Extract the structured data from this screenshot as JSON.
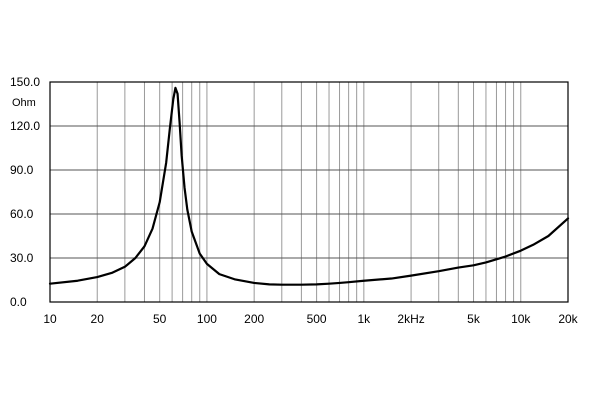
{
  "chart_data": {
    "type": "line",
    "xscale": "log",
    "xlim": [
      10,
      20000
    ],
    "ylim": [
      0,
      150
    ],
    "ylabel": "Ohm",
    "xlabel": "",
    "grid": true,
    "y_ticks": [
      {
        "value": 0,
        "label": "0.0"
      },
      {
        "value": 30,
        "label": "30.0"
      },
      {
        "value": 60,
        "label": "60.0"
      },
      {
        "value": 90,
        "label": "90.0"
      },
      {
        "value": 120,
        "label": "120.0"
      },
      {
        "value": 150,
        "label": "150.0"
      }
    ],
    "x_ticks": [
      {
        "value": 10,
        "label": "10"
      },
      {
        "value": 20,
        "label": "20"
      },
      {
        "value": 50,
        "label": "50"
      },
      {
        "value": 100,
        "label": "100"
      },
      {
        "value": 200,
        "label": "200"
      },
      {
        "value": 500,
        "label": "500"
      },
      {
        "value": 1000,
        "label": "1k"
      },
      {
        "value": 2000,
        "label": "2kHz"
      },
      {
        "value": 5000,
        "label": "5k"
      },
      {
        "value": 10000,
        "label": "10k"
      },
      {
        "value": 20000,
        "label": "20k"
      }
    ],
    "x_grid": [
      20,
      30,
      40,
      50,
      60,
      70,
      80,
      90,
      100,
      200,
      300,
      400,
      500,
      600,
      700,
      800,
      900,
      1000,
      2000,
      3000,
      4000,
      5000,
      6000,
      7000,
      8000,
      9000,
      10000,
      20000
    ],
    "series": [
      {
        "name": "",
        "x": [
          10,
          15,
          20,
          25,
          30,
          35,
          40,
          45,
          50,
          55,
          58,
          61,
          63,
          65,
          67,
          69,
          72,
          75,
          80,
          90,
          100,
          120,
          150,
          200,
          250,
          300,
          400,
          500,
          600,
          700,
          800,
          1000,
          1500,
          2000,
          3000,
          4000,
          5000,
          6000,
          8000,
          10000,
          12000,
          15000,
          20000
        ],
        "y": [
          12.5,
          14.5,
          17,
          20,
          24,
          30,
          38,
          50,
          68,
          95,
          118,
          138,
          146,
          142,
          122,
          100,
          78,
          63,
          48,
          33,
          26,
          19,
          15.5,
          13,
          12,
          11.8,
          11.8,
          12,
          12.5,
          13,
          13.5,
          14.5,
          16,
          18,
          21,
          23.5,
          25,
          27,
          31,
          35,
          39,
          45,
          57
        ]
      }
    ]
  }
}
